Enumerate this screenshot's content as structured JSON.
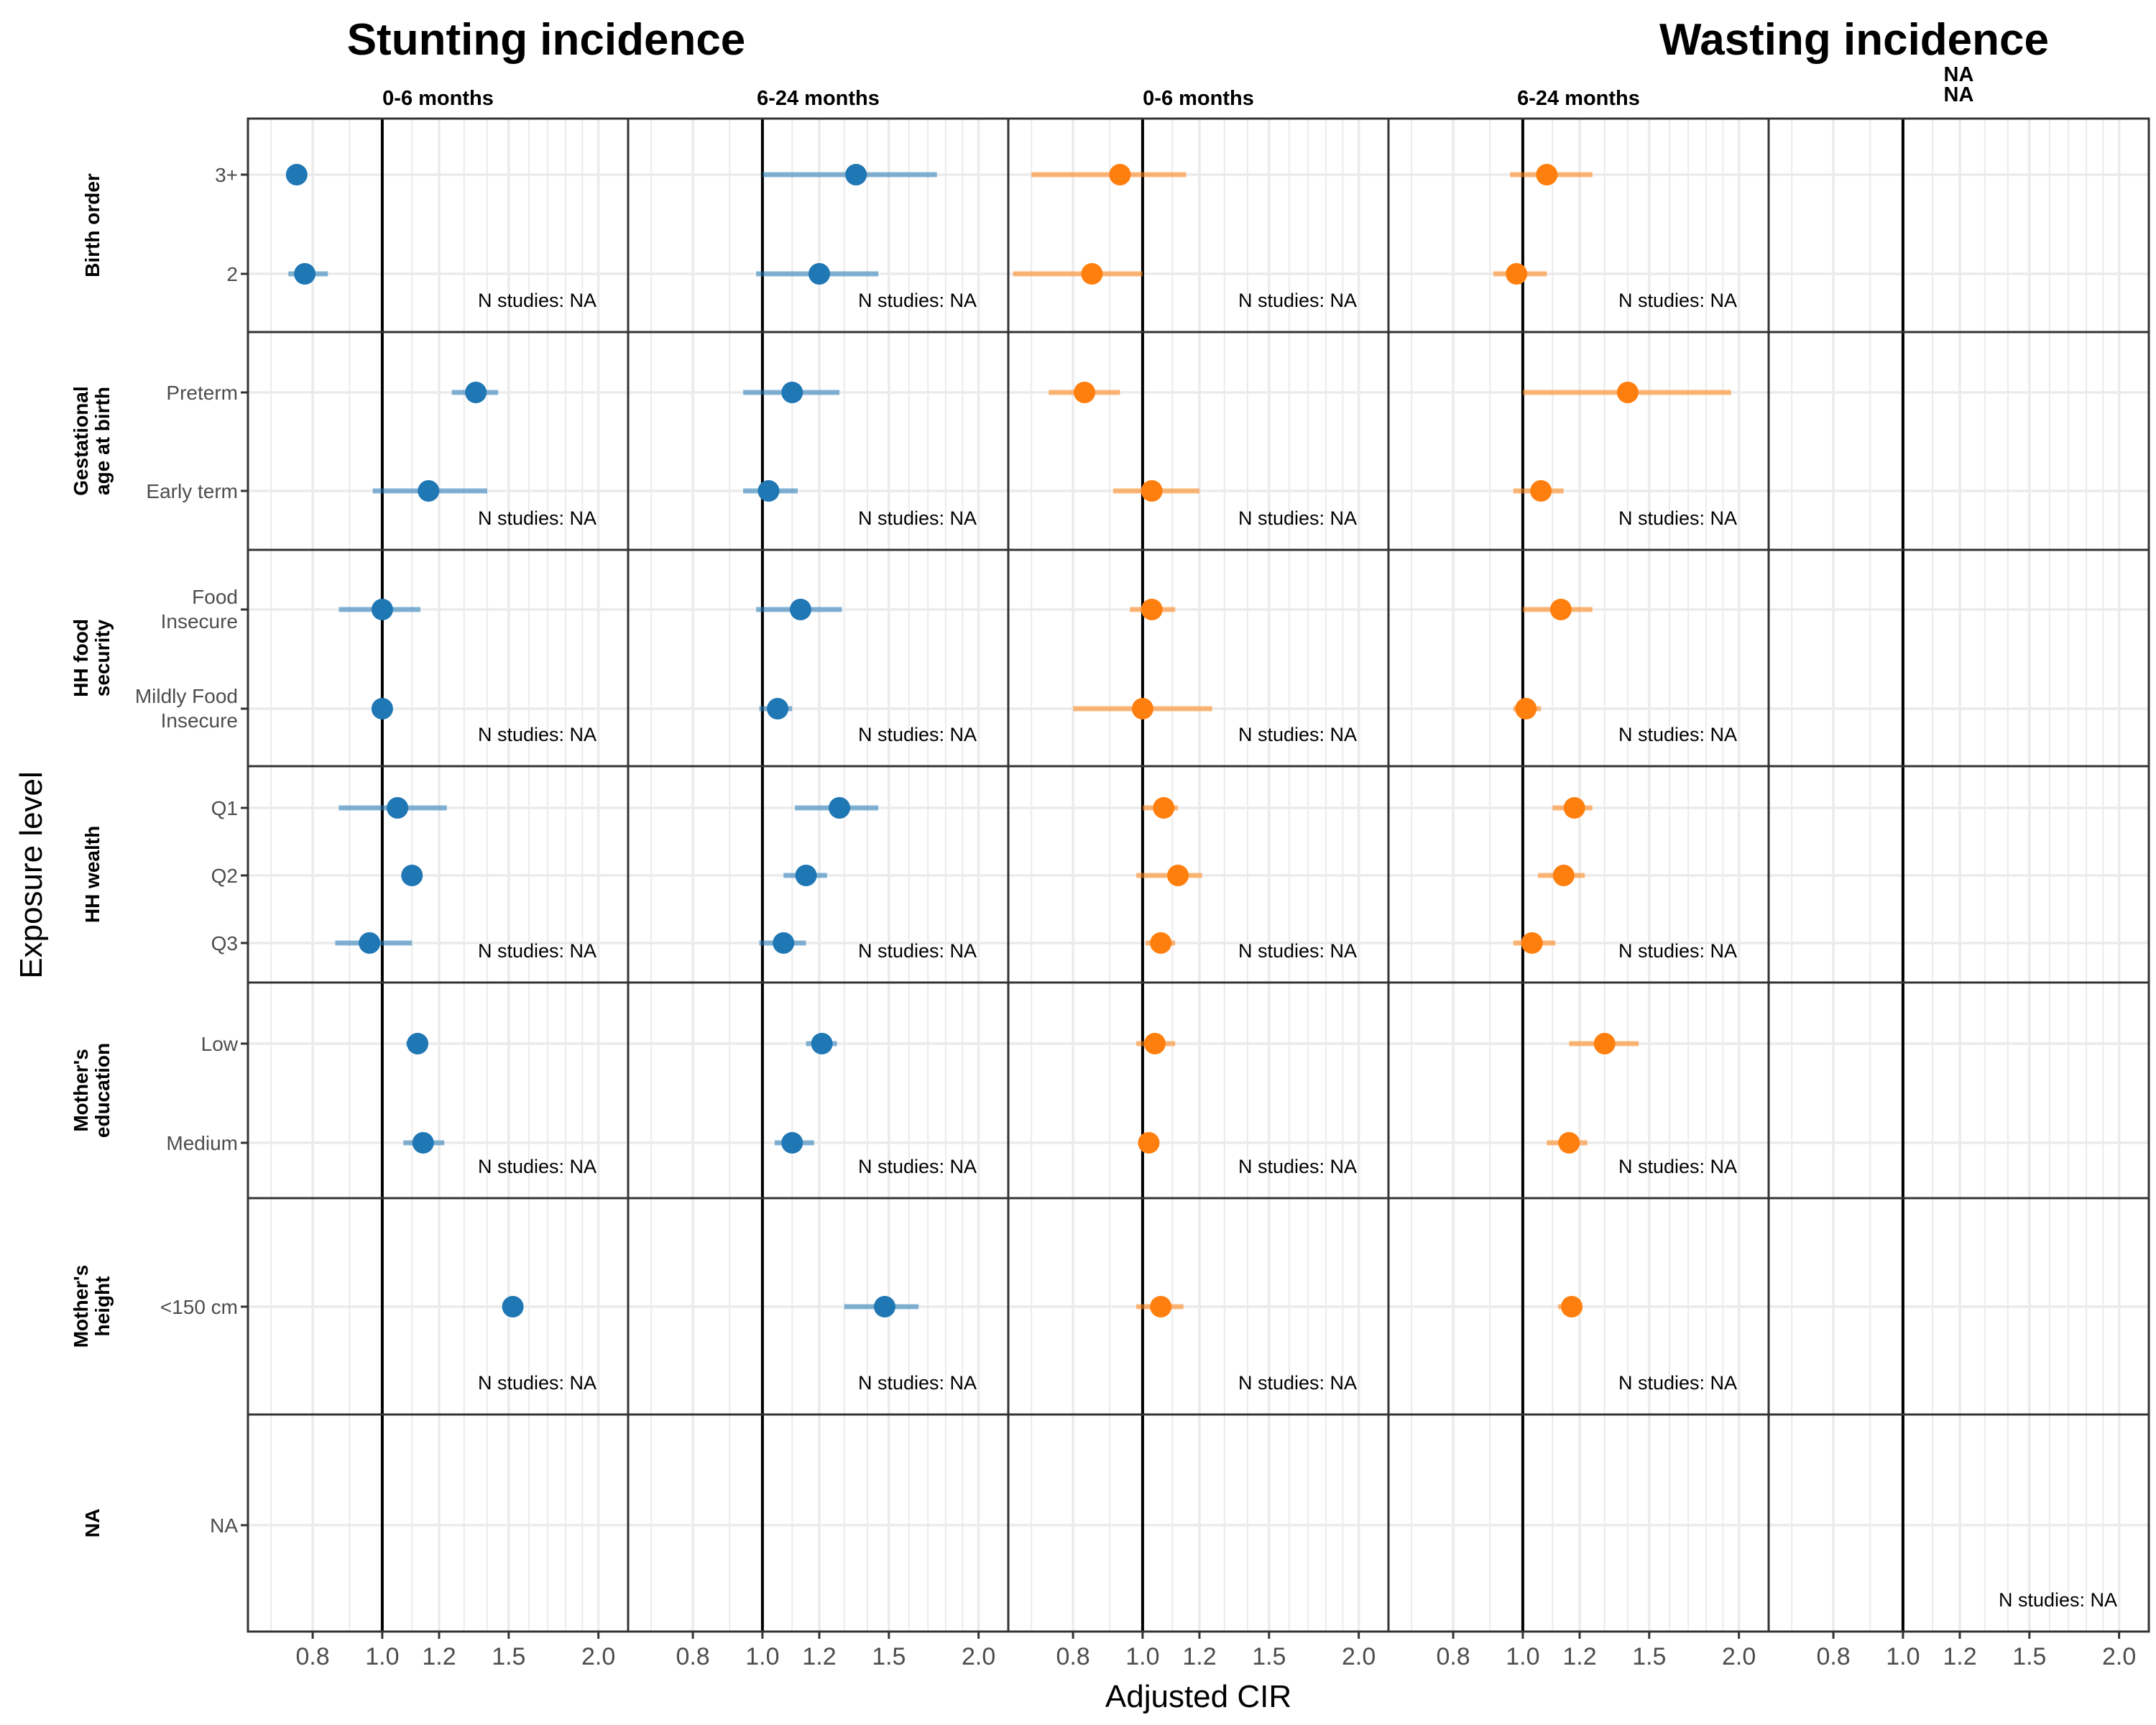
{
  "chart_data": {
    "type": "forest",
    "titles": [
      "Stunting incidence",
      "Wasting incidence"
    ],
    "column_headers": [
      "0-6 months",
      "6-24 months",
      "0-6 months",
      "6-24 months",
      "NA\nNA"
    ],
    "xlabel": "Adjusted CIR",
    "ylabel": "Exposure level",
    "x_scale": "log",
    "xlim": [
      0.65,
      2.2
    ],
    "x_ticks": [
      "0.8",
      "1.0",
      "1.2",
      "1.5",
      "2.0"
    ],
    "reference_line": 1.0,
    "n_studies_label": "N studies: NA",
    "colors": {
      "stunting": "#1f77b4",
      "wasting": "#ff7f0e"
    },
    "column_series": [
      "stunting",
      "stunting",
      "wasting",
      "wasting",
      "none"
    ],
    "rows": [
      {
        "name": "Birth order",
        "levels": [
          "3+",
          "2"
        ],
        "estimates": [
          [
            [
              0.76,
              null,
              null
            ],
            [
              0.78,
              0.74,
              0.84
            ]
          ],
          [
            [
              1.35,
              1.0,
              1.75
            ],
            [
              1.2,
              0.98,
              1.45
            ]
          ],
          [
            [
              0.93,
              0.7,
              1.15
            ],
            [
              0.85,
              0.66,
              1.0
            ]
          ],
          [
            [
              1.08,
              0.96,
              1.25
            ],
            [
              0.98,
              0.91,
              1.08
            ]
          ],
          [
            null,
            null
          ]
        ]
      },
      {
        "name": "Gestational age at birth",
        "levels": [
          "Preterm",
          "Early term"
        ],
        "estimates": [
          [
            [
              1.35,
              1.25,
              1.45
            ],
            [
              1.16,
              0.97,
              1.4
            ]
          ],
          [
            [
              1.1,
              0.94,
              1.28
            ],
            [
              1.02,
              0.94,
              1.12
            ]
          ],
          [
            [
              0.83,
              0.74,
              0.93
            ],
            [
              1.03,
              0.91,
              1.2
            ]
          ],
          [
            [
              1.4,
              1.0,
              1.95
            ],
            [
              1.06,
              0.97,
              1.14
            ]
          ],
          [
            null,
            null
          ]
        ]
      },
      {
        "name": "HH food security",
        "levels": [
          "Food Insecure",
          "Mildly Food Insecure"
        ],
        "estimates": [
          [
            [
              1.0,
              0.87,
              1.13
            ],
            [
              1.0,
              null,
              null
            ]
          ],
          [
            [
              1.13,
              0.98,
              1.29
            ],
            [
              1.05,
              0.99,
              1.1
            ]
          ],
          [
            [
              1.03,
              0.96,
              1.11
            ],
            [
              1.0,
              0.8,
              1.25
            ]
          ],
          [
            [
              1.13,
              1.0,
              1.25
            ],
            [
              1.01,
              0.97,
              1.06
            ]
          ],
          [
            null,
            null
          ]
        ]
      },
      {
        "name": "HH wealth",
        "levels": [
          "Q1",
          "Q2",
          "Q3"
        ],
        "estimates": [
          [
            [
              1.05,
              0.87,
              1.23
            ],
            [
              1.1,
              null,
              null
            ],
            [
              0.96,
              0.86,
              1.1
            ]
          ],
          [
            [
              1.28,
              1.11,
              1.45
            ],
            [
              1.15,
              1.07,
              1.23
            ],
            [
              1.07,
              0.99,
              1.15
            ]
          ],
          [
            [
              1.07,
              1.0,
              1.12
            ],
            [
              1.12,
              0.98,
              1.21
            ],
            [
              1.06,
              1.01,
              1.11
            ]
          ],
          [
            [
              1.18,
              1.1,
              1.25
            ],
            [
              1.14,
              1.05,
              1.22
            ],
            [
              1.03,
              0.97,
              1.11
            ]
          ],
          [
            null,
            null,
            null
          ]
        ]
      },
      {
        "name": "Mother's education",
        "levels": [
          "Low",
          "Medium"
        ],
        "estimates": [
          [
            [
              1.12,
              1.08,
              1.15
            ],
            [
              1.14,
              1.07,
              1.22
            ]
          ],
          [
            [
              1.21,
              1.15,
              1.27
            ],
            [
              1.1,
              1.04,
              1.18
            ]
          ],
          [
            [
              1.04,
              0.98,
              1.11
            ],
            [
              1.02,
              1.0,
              1.05
            ]
          ],
          [
            [
              1.3,
              1.16,
              1.45
            ],
            [
              1.16,
              1.08,
              1.23
            ]
          ],
          [
            null,
            null
          ]
        ]
      },
      {
        "name": "Mother's height",
        "levels": [
          "<150 cm"
        ],
        "estimates": [
          [
            [
              1.52,
              null,
              null
            ]
          ],
          [
            [
              1.48,
              1.3,
              1.65
            ]
          ],
          [
            [
              1.06,
              0.98,
              1.14
            ]
          ],
          [
            [
              1.17,
              1.12,
              1.21
            ]
          ],
          [
            null
          ]
        ]
      },
      {
        "name": "NA",
        "levels": [
          "NA"
        ],
        "estimates": [
          [
            null
          ],
          [
            null
          ],
          [
            null
          ],
          [
            null
          ],
          [
            null
          ]
        ]
      }
    ],
    "n_label_panels": [
      [
        0,
        0
      ],
      [
        0,
        1
      ],
      [
        0,
        2
      ],
      [
        0,
        3
      ],
      [
        1,
        0
      ],
      [
        1,
        1
      ],
      [
        1,
        2
      ],
      [
        1,
        3
      ],
      [
        2,
        0
      ],
      [
        2,
        1
      ],
      [
        2,
        2
      ],
      [
        2,
        3
      ],
      [
        3,
        0
      ],
      [
        3,
        1
      ],
      [
        3,
        2
      ],
      [
        3,
        3
      ],
      [
        4,
        0
      ],
      [
        4,
        1
      ],
      [
        4,
        2
      ],
      [
        4,
        3
      ],
      [
        5,
        0
      ],
      [
        5,
        1
      ],
      [
        5,
        2
      ],
      [
        5,
        3
      ],
      [
        6,
        4
      ]
    ]
  }
}
